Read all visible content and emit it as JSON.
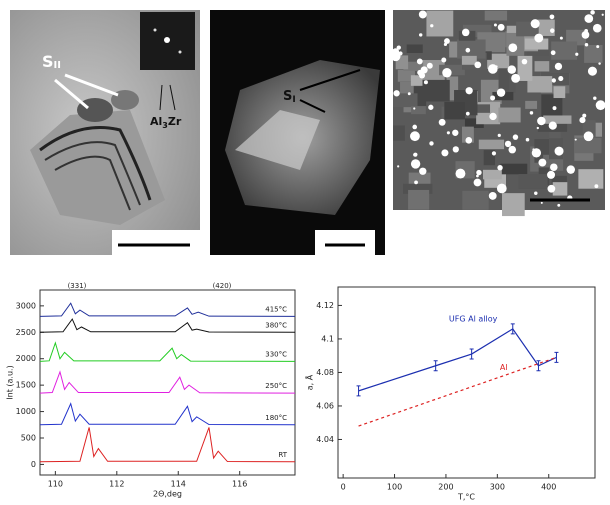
{
  "micrographs": {
    "left": {
      "s_label": "S",
      "s_sub": "II",
      "phase": "Al",
      "phase_sub": "3",
      "phase_tail": "Zr"
    },
    "middle": {
      "s_label": "S",
      "s_sub": "I"
    }
  },
  "chart_data": [
    {
      "type": "line",
      "x_label": "2Θ,deg",
      "y_label": "Int (a.u.)",
      "annotations": [
        "(331)",
        "(420)"
      ],
      "xlim": [
        109.5,
        117.8
      ],
      "xticks": [
        110,
        112,
        114,
        116
      ],
      "ylim": [
        -200,
        3300
      ],
      "yticks": [
        0,
        500,
        1000,
        1500,
        2000,
        2500,
        3000
      ],
      "series": [
        {
          "name": "415°C",
          "color": "#1f2f9a",
          "x": [
            109.5,
            110.2,
            110.5,
            110.65,
            110.8,
            111.1,
            113.9,
            114.3,
            114.45,
            114.65,
            115.0,
            117.8
          ],
          "values": [
            2800,
            2810,
            3050,
            2850,
            2920,
            2810,
            2810,
            2960,
            2840,
            2880,
            2805,
            2800
          ]
        },
        {
          "name": "380°C",
          "color": "#111111",
          "x": [
            109.5,
            110.25,
            110.55,
            110.7,
            110.85,
            111.15,
            113.9,
            114.3,
            114.45,
            114.6,
            115.0,
            117.8
          ],
          "values": [
            2500,
            2510,
            2750,
            2550,
            2600,
            2510,
            2510,
            2680,
            2540,
            2560,
            2505,
            2500
          ]
        },
        {
          "name": "330°C",
          "color": "#22cc22",
          "x": [
            109.5,
            109.8,
            110.0,
            110.15,
            110.3,
            110.6,
            113.4,
            113.8,
            113.95,
            114.1,
            114.4,
            117.8
          ],
          "values": [
            1950,
            1960,
            2300,
            2000,
            2120,
            1960,
            1960,
            2200,
            2000,
            2080,
            1955,
            1950
          ]
        },
        {
          "name": "250°C",
          "color": "#e020e0",
          "x": [
            109.5,
            109.9,
            110.15,
            110.3,
            110.45,
            110.75,
            113.7,
            114.05,
            114.2,
            114.35,
            114.7,
            117.8
          ],
          "values": [
            1350,
            1360,
            1750,
            1420,
            1550,
            1360,
            1360,
            1650,
            1420,
            1500,
            1355,
            1350
          ]
        },
        {
          "name": "180°C",
          "color": "#2233cc",
          "x": [
            109.5,
            110.2,
            110.5,
            110.65,
            110.8,
            111.1,
            113.9,
            114.3,
            114.45,
            114.6,
            115.0,
            117.8
          ],
          "values": [
            750,
            760,
            1150,
            820,
            950,
            760,
            760,
            1100,
            810,
            900,
            755,
            750
          ]
        },
        {
          "name": "RT",
          "color": "#dd2222",
          "x": [
            109.5,
            110.8,
            111.1,
            111.25,
            111.4,
            111.7,
            114.6,
            115.0,
            115.15,
            115.3,
            115.6,
            117.8
          ],
          "values": [
            50,
            60,
            700,
            150,
            300,
            60,
            60,
            700,
            120,
            250,
            55,
            50
          ]
        }
      ]
    },
    {
      "type": "line",
      "x_label": "T,°C",
      "y_label": "a, Å",
      "xlim": [
        -10,
        490
      ],
      "xticks": [
        0,
        100,
        200,
        300,
        400
      ],
      "ylim": [
        4.017,
        4.131
      ],
      "yticks": [
        4.04,
        4.06,
        4.08,
        4.1,
        4.12
      ],
      "series": [
        {
          "name": "UFG Al alloy",
          "color": "#1c2fb0",
          "x": [
            30,
            180,
            250,
            330,
            380,
            415
          ],
          "values": [
            4.069,
            4.084,
            4.091,
            4.106,
            4.084,
            4.089
          ],
          "errors": [
            0.003,
            0.003,
            0.003,
            0.003,
            0.003,
            0.003
          ]
        },
        {
          "name": "Al",
          "color": "#dd2222",
          "dashed": true,
          "x": [
            30,
            415
          ],
          "values": [
            4.048,
            4.089
          ]
        }
      ]
    }
  ]
}
